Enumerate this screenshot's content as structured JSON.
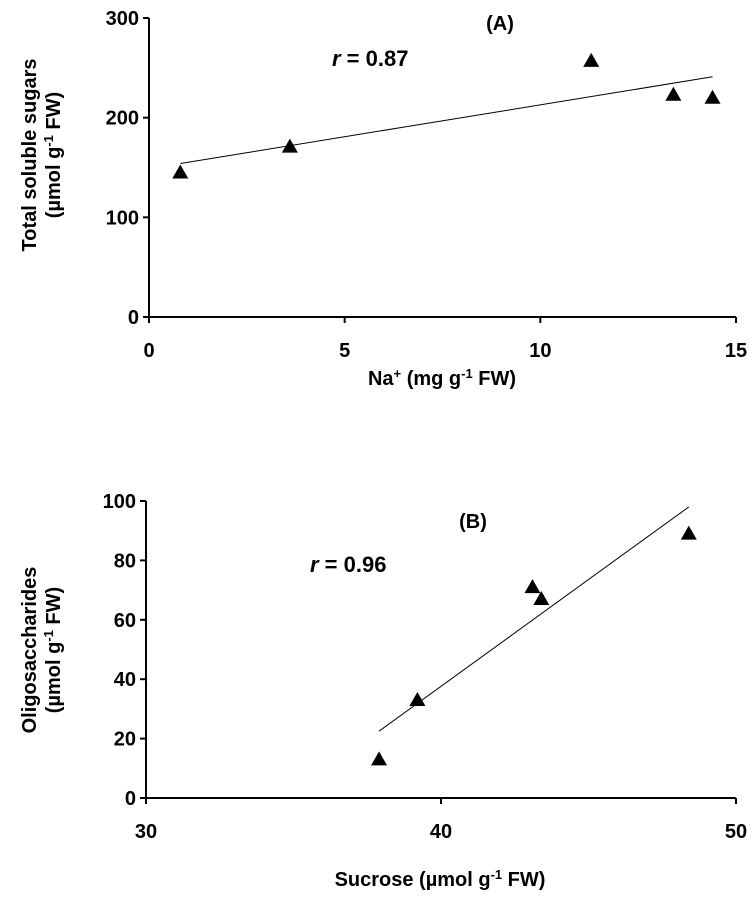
{
  "chart_data": [
    {
      "type": "scatter",
      "panel_label": "(A)",
      "annotation": {
        "r_symbol": "r",
        "r_value": " = 0.87"
      },
      "xlabel": {
        "base": "Na",
        "sup": "+",
        "rest": " (mg g",
        "sup2": "-1",
        "tail": " FW)"
      },
      "ylabel": {
        "line1": "Total soluble sugars",
        "line2_base": "(µmol g",
        "line2_sup": "-1",
        "line2_tail": " FW)"
      },
      "xlim": [
        0,
        15
      ],
      "ylim": [
        0,
        300
      ],
      "xticks": [
        0,
        5,
        10,
        15
      ],
      "yticks": [
        0,
        100,
        200,
        300
      ],
      "xtick_labels": [
        "0",
        "5",
        "10",
        "15"
      ],
      "ytick_labels": [
        "0",
        "100",
        "200",
        "300"
      ],
      "marker": "triangle",
      "series": [
        {
          "x": [
            0.8,
            3.6,
            11.3,
            13.4,
            14.4
          ],
          "y": [
            145,
            171,
            257,
            223,
            220
          ]
        }
      ],
      "trendline": {
        "x": [
          0.8,
          14.4
        ],
        "y": [
          154,
          241
        ]
      }
    },
    {
      "type": "scatter",
      "panel_label": "(B)",
      "annotation": {
        "r_symbol": "r",
        "r_value": " = 0.96"
      },
      "xlabel": {
        "base": "Sucrose (µmol g",
        "sup": "-1",
        "rest": " FW)"
      },
      "ylabel": {
        "line1": "Oligosaccharides",
        "line2_base": "(µmol g",
        "line2_sup": "-1",
        "line2_tail": " FW)"
      },
      "xlim": [
        30,
        50
      ],
      "ylim": [
        0,
        100
      ],
      "xticks": [
        30,
        40,
        50
      ],
      "yticks": [
        0,
        20,
        40,
        60,
        80,
        100
      ],
      "xtick_labels": [
        "30",
        "40",
        "50"
      ],
      "ytick_labels": [
        "0",
        "20",
        "40",
        "60",
        "80",
        "100"
      ],
      "marker": "triangle",
      "series": [
        {
          "x": [
            37.9,
            39.2,
            43.1,
            43.4,
            48.4
          ],
          "y": [
            13,
            33,
            71,
            67,
            89
          ]
        }
      ],
      "trendline": {
        "x": [
          37.9,
          48.4
        ],
        "y": [
          22.5,
          98
        ]
      }
    }
  ]
}
